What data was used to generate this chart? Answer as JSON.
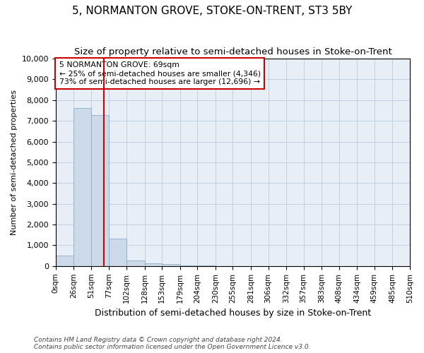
{
  "title": "5, NORMANTON GROVE, STOKE-ON-TRENT, ST3 5BY",
  "subtitle": "Size of property relative to semi-detached houses in Stoke-on-Trent",
  "xlabel": "Distribution of semi-detached houses by size in Stoke-on-Trent",
  "ylabel": "Number of semi-detached properties",
  "footnote1": "Contains HM Land Registry data © Crown copyright and database right 2024.",
  "footnote2": "Contains public sector information licensed under the Open Government Licence v3.0.",
  "bin_edges": [
    0,
    26,
    51,
    77,
    102,
    128,
    153,
    179,
    204,
    230,
    255,
    281,
    306,
    332,
    357,
    383,
    408,
    434,
    459,
    485,
    510
  ],
  "bar_heights": [
    500,
    7620,
    7280,
    1320,
    280,
    130,
    80,
    40,
    20,
    10,
    5,
    3,
    2,
    1,
    0,
    0,
    0,
    0,
    0,
    0
  ],
  "bar_color": "#ccd9e8",
  "bar_edge_color": "#8aaec8",
  "property_size": 69,
  "vline_color": "#cc0000",
  "annotation_line1": "5 NORMANTON GROVE: 69sqm",
  "annotation_line2": "← 25% of semi-detached houses are smaller (4,346)",
  "annotation_line3": "73% of semi-detached houses are larger (12,696) →",
  "annotation_box_color": "#cc0000",
  "annotation_bg": "#ffffff",
  "ylim": [
    0,
    10000
  ],
  "yticks": [
    0,
    1000,
    2000,
    3000,
    4000,
    5000,
    6000,
    7000,
    8000,
    9000,
    10000
  ],
  "grid_color": "#bbccdd",
  "bg_color": "#e8eef5",
  "title_fontsize": 11,
  "subtitle_fontsize": 9.5
}
